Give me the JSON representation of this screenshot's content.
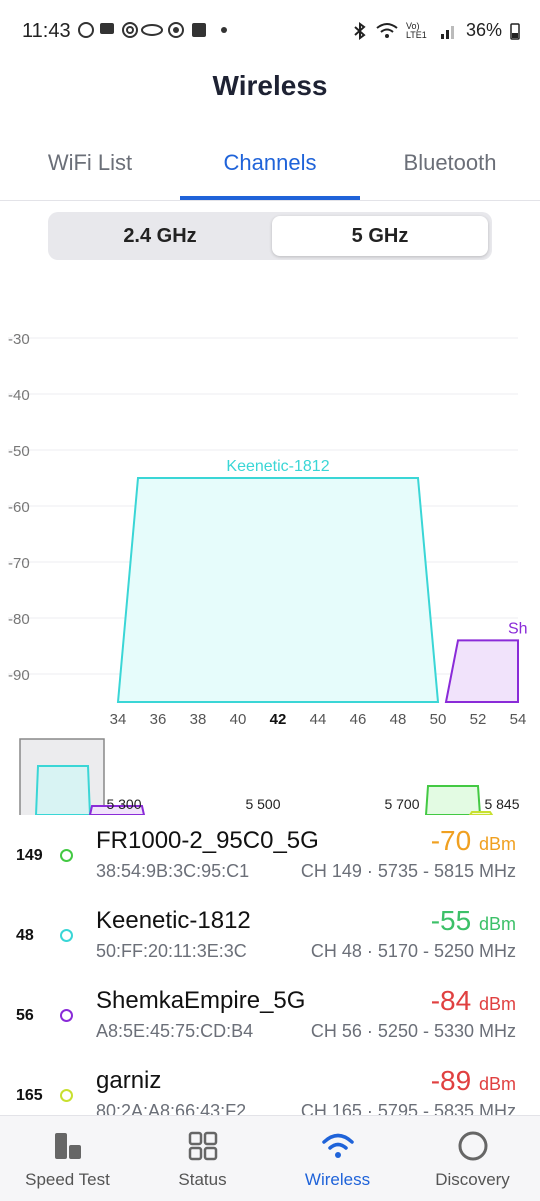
{
  "status_bar": {
    "time": "11:43",
    "battery": "36%",
    "network": "Vo) LTE1"
  },
  "title": "Wireless",
  "tabs": [
    {
      "label": "WiFi List",
      "active": false
    },
    {
      "label": "Channels",
      "active": true
    },
    {
      "label": "Bluetooth",
      "active": false
    }
  ],
  "band_selector": [
    {
      "label": "2.4 GHz",
      "active": false
    },
    {
      "label": "5 GHz",
      "active": true
    }
  ],
  "chart_data": {
    "type": "area",
    "title": "",
    "xlabel": "",
    "ylabel": "",
    "y_ticks": [
      "-30",
      "-40",
      "-50",
      "-60",
      "-70",
      "-80",
      "-90"
    ],
    "ylim": [
      -95,
      -25
    ],
    "x_ticks": [
      "34",
      "36",
      "38",
      "40",
      "42",
      "44",
      "46",
      "48",
      "50",
      "52",
      "54"
    ],
    "x_highlight": "42",
    "xlim": [
      34,
      54
    ],
    "grid": true,
    "networks": [
      {
        "name": "Keenetic-1812",
        "label": "Keenetic-1812",
        "channels": [
          34,
          35,
          49,
          50
        ],
        "dbm": -55,
        "stroke": "#3ad6d6",
        "fill": "#e6fcfb"
      },
      {
        "name": "ShemkaEmpire_5G",
        "label": "Sh",
        "channels": [
          50.4,
          51,
          54,
          54
        ],
        "dbm": -84,
        "stroke": "#8a2bd8",
        "fill": "#f1e3fb"
      }
    ]
  },
  "overview": {
    "labels": [
      "5 300",
      "5 500",
      "5 700",
      "5 845"
    ]
  },
  "networks": [
    {
      "channel": "149",
      "ssid": "FR1000-2_95C0_5G",
      "mac": "38:54:9B:3C:95:C1",
      "info": "CH 149 · 5735 - 5815 MHz",
      "signal": "-70",
      "unit": "dBm",
      "signal_color": "#f0a020",
      "dot_color": "#43c943"
    },
    {
      "channel": "48",
      "ssid": "Keenetic-1812",
      "mac": "50:FF:20:11:3E:3C",
      "info": "CH 48 · 5170 - 5250 MHz",
      "signal": "-55",
      "unit": "dBm",
      "signal_color": "#3cc068",
      "dot_color": "#3ad6d6"
    },
    {
      "channel": "56",
      "ssid": "ShemkaEmpire_5G",
      "mac": "A8:5E:45:75:CD:B4",
      "info": "CH 56 · 5250 - 5330 MHz",
      "signal": "-84",
      "unit": "dBm",
      "signal_color": "#e04040",
      "dot_color": "#8a2bd8"
    },
    {
      "channel": "165",
      "ssid": "garniz",
      "mac": "80:2A:A8:66:43:F2",
      "info": "CH 165 · 5795 - 5835 MHz",
      "signal": "-89",
      "unit": "dBm",
      "signal_color": "#e04040",
      "dot_color": "#c8e030"
    }
  ],
  "bottom_nav": [
    {
      "label": "Speed Test",
      "icon": "speed-test-icon",
      "active": false
    },
    {
      "label": "Status",
      "icon": "status-grid-icon",
      "active": false
    },
    {
      "label": "Wireless",
      "icon": "wifi-icon",
      "active": true
    },
    {
      "label": "Discovery",
      "icon": "discovery-icon",
      "active": false
    }
  ],
  "colors": {
    "accent": "#1f63d9"
  }
}
